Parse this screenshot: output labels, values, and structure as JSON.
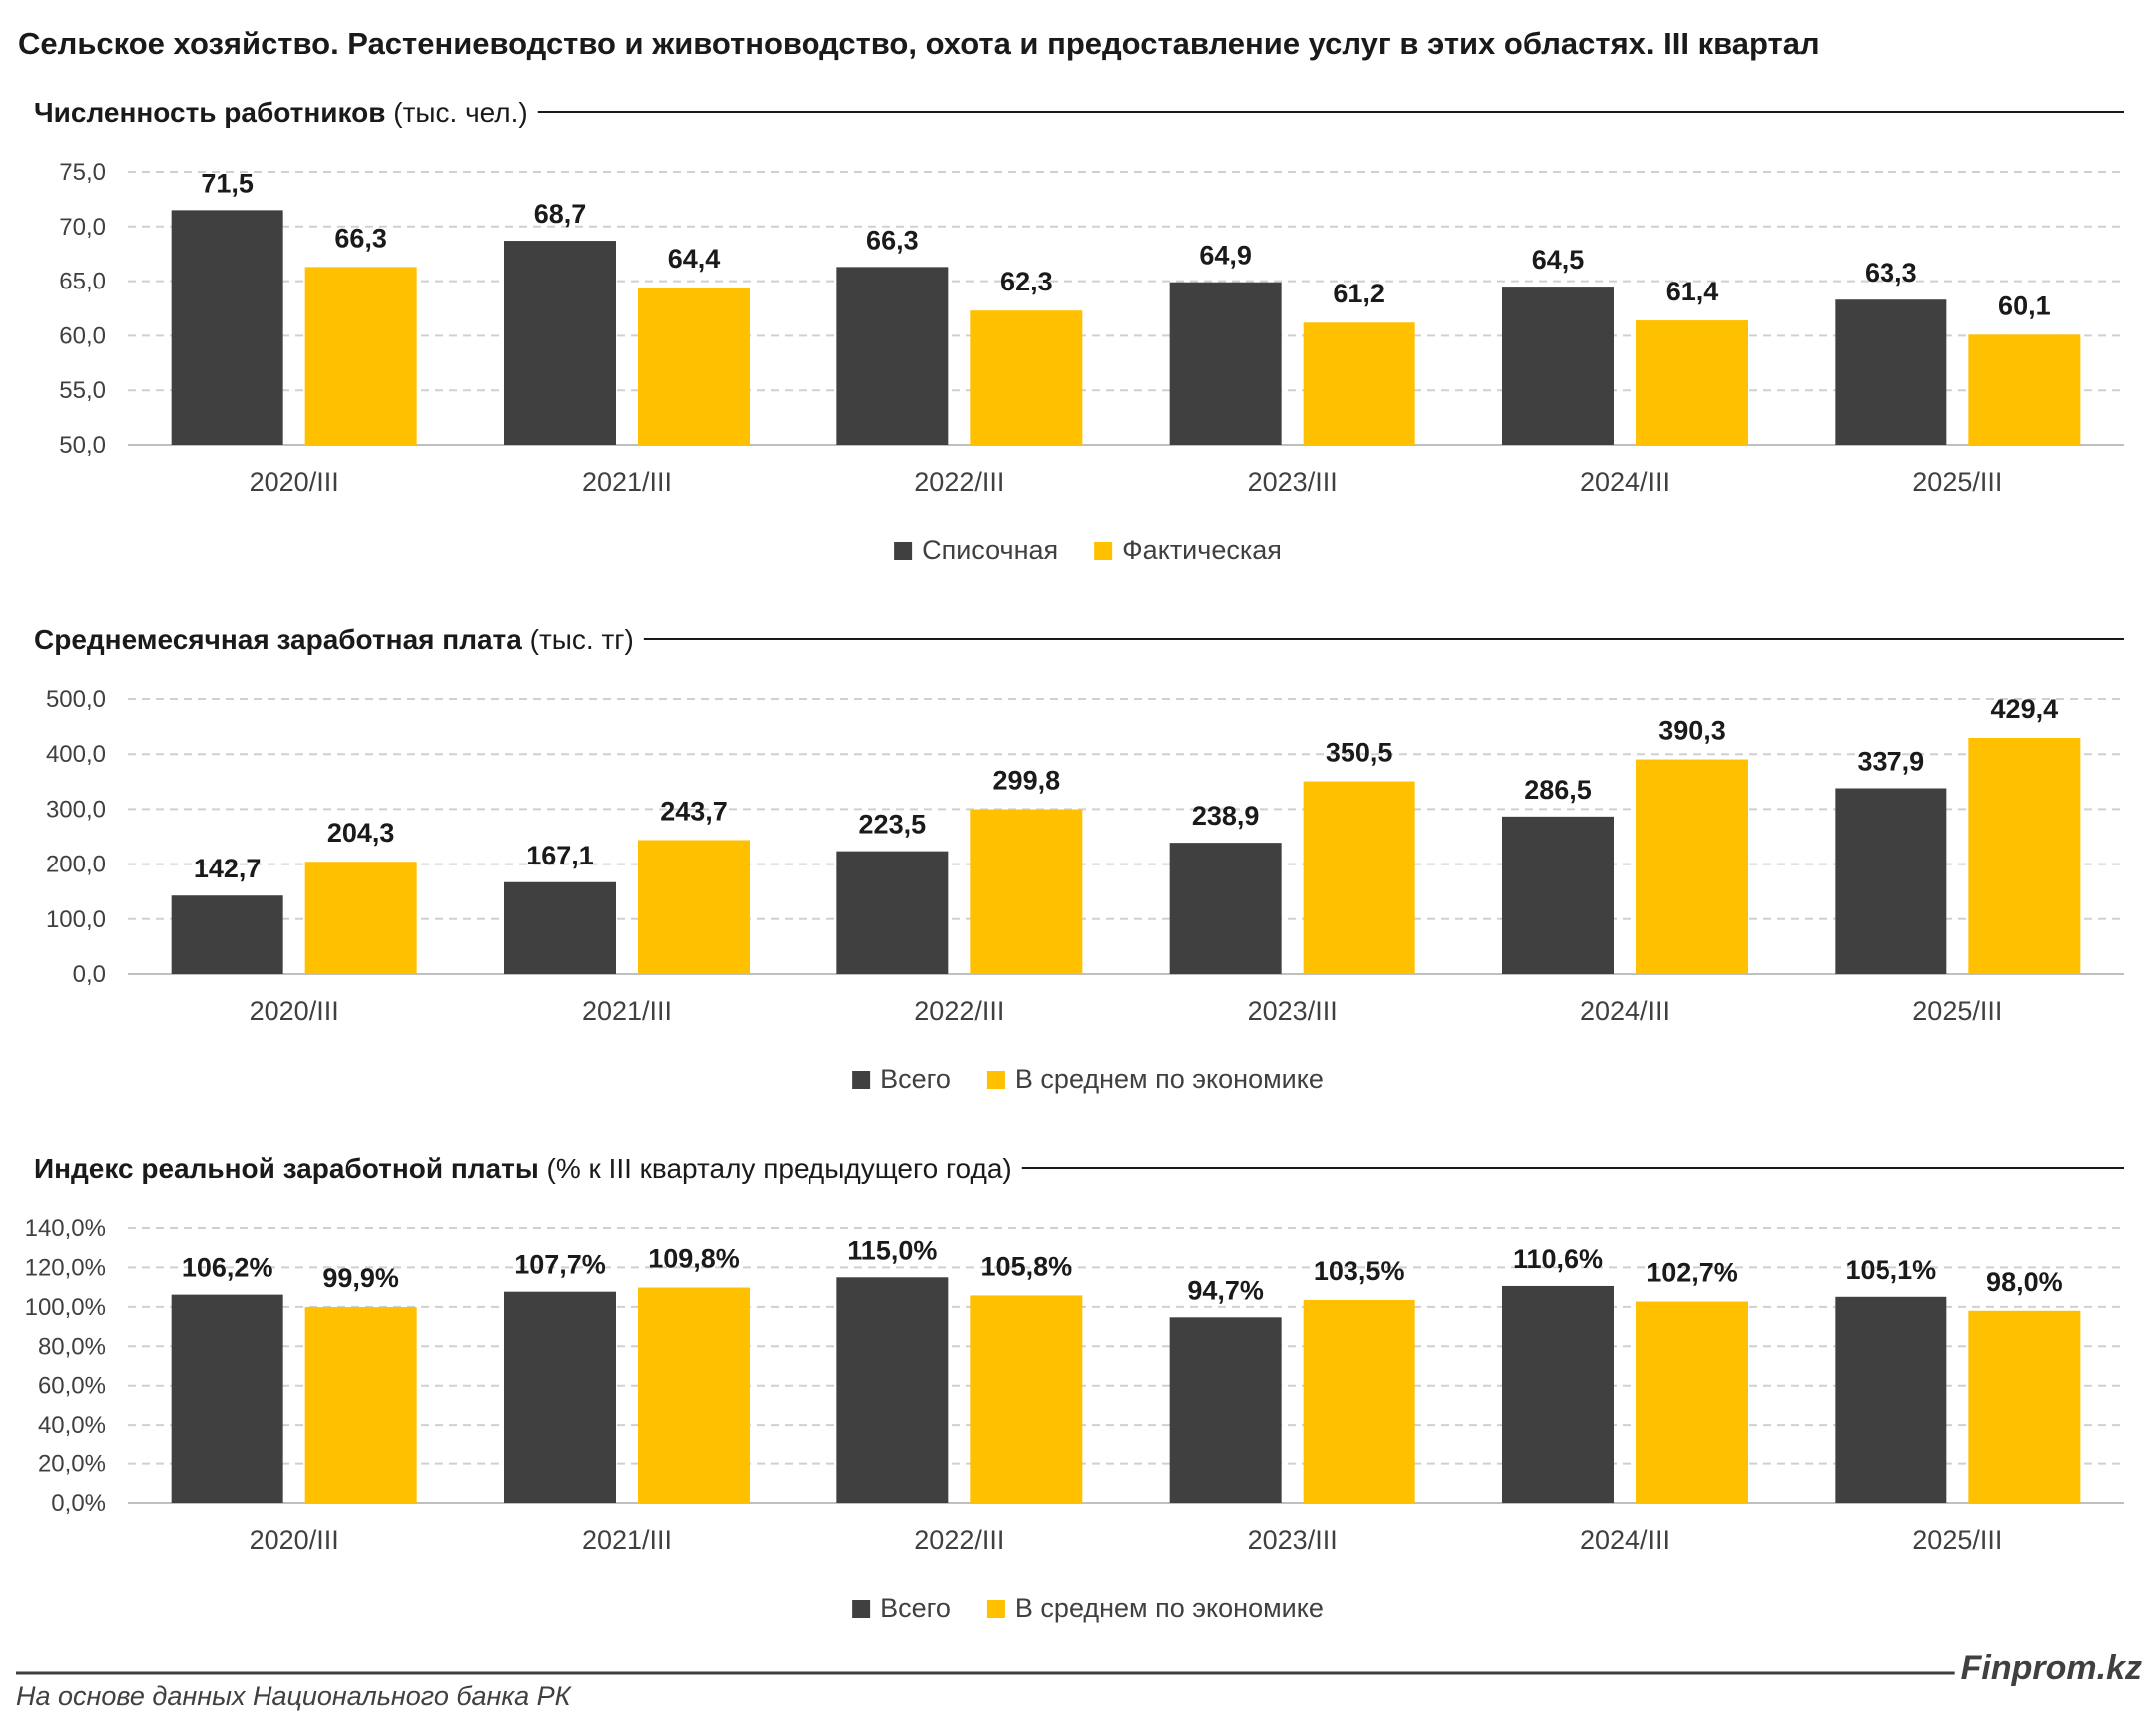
{
  "title": "Сельское хозяйство. Растениеводство и животноводство, охота и предоставление услуг в этих областях. III квартал",
  "colors": {
    "dark": "#404040",
    "yellow": "#FFC000",
    "grid": "#c8c8c8",
    "text": "#1a1a1a"
  },
  "footer": {
    "source": "На основе данных Национального банка РК",
    "brand": "Finprom.kz"
  },
  "chart_data": [
    {
      "type": "bar",
      "title": "Численность работников",
      "unit": "(тыс. чел.)",
      "categories": [
        "2020/III",
        "2021/III",
        "2022/III",
        "2023/III",
        "2024/III",
        "2025/III"
      ],
      "ylim": [
        50,
        75
      ],
      "yticks": [
        50,
        55,
        60,
        65,
        70,
        75
      ],
      "ytick_labels": [
        "50,0",
        "55,0",
        "60,0",
        "65,0",
        "70,0",
        "75,0"
      ],
      "grid": true,
      "legend": "bottom",
      "series": [
        {
          "name": "Списочная",
          "color": "#404040",
          "values": [
            71.5,
            68.7,
            66.3,
            64.9,
            64.5,
            63.3
          ],
          "labels": [
            "71,5",
            "68,7",
            "66,3",
            "64,9",
            "64,5",
            "63,3"
          ]
        },
        {
          "name": "Фактическая",
          "color": "#FFC000",
          "values": [
            66.3,
            64.4,
            62.3,
            61.2,
            61.4,
            60.1
          ],
          "labels": [
            "66,3",
            "64,4",
            "62,3",
            "61,2",
            "61,4",
            "60,1"
          ]
        }
      ]
    },
    {
      "type": "bar",
      "title": "Среднемесячная заработная плата",
      "unit": "(тыс. тг)",
      "categories": [
        "2020/III",
        "2021/III",
        "2022/III",
        "2023/III",
        "2024/III",
        "2025/III"
      ],
      "ylim": [
        0,
        500
      ],
      "yticks": [
        0,
        100,
        200,
        300,
        400,
        500
      ],
      "ytick_labels": [
        "0,0",
        "100,0",
        "200,0",
        "300,0",
        "400,0",
        "500,0"
      ],
      "grid": true,
      "legend": "bottom",
      "series": [
        {
          "name": "Всего",
          "color": "#404040",
          "values": [
            142.7,
            167.1,
            223.5,
            238.9,
            286.5,
            337.9
          ],
          "labels": [
            "142,7",
            "167,1",
            "223,5",
            "238,9",
            "286,5",
            "337,9"
          ]
        },
        {
          "name": "В среднем по экономике",
          "color": "#FFC000",
          "values": [
            204.3,
            243.7,
            299.8,
            350.5,
            390.3,
            429.4
          ],
          "labels": [
            "204,3",
            "243,7",
            "299,8",
            "350,5",
            "390,3",
            "429,4"
          ]
        }
      ]
    },
    {
      "type": "bar",
      "title": "Индекс реальной заработной платы",
      "unit": "(% к III кварталу предыдущего года)",
      "categories": [
        "2020/III",
        "2021/III",
        "2022/III",
        "2023/III",
        "2024/III",
        "2025/III"
      ],
      "ylim": [
        0,
        140
      ],
      "yticks": [
        0,
        20,
        40,
        60,
        80,
        100,
        120,
        140
      ],
      "ytick_labels": [
        "0,0%",
        "20,0%",
        "40,0%",
        "60,0%",
        "80,0%",
        "100,0%",
        "120,0%",
        "140,0%"
      ],
      "grid": true,
      "legend": "bottom",
      "series": [
        {
          "name": "Всего",
          "color": "#404040",
          "values": [
            106.2,
            107.7,
            115.0,
            94.7,
            110.6,
            105.1
          ],
          "labels": [
            "106,2%",
            "107,7%",
            "115,0%",
            "94,7%",
            "110,6%",
            "105,1%"
          ]
        },
        {
          "name": "В среднем по экономике",
          "color": "#FFC000",
          "values": [
            99.9,
            109.8,
            105.8,
            103.5,
            102.7,
            98.0
          ],
          "labels": [
            "99,9%",
            "109,8%",
            "105,8%",
            "103,5%",
            "102,7%",
            "98,0%"
          ]
        }
      ]
    }
  ]
}
